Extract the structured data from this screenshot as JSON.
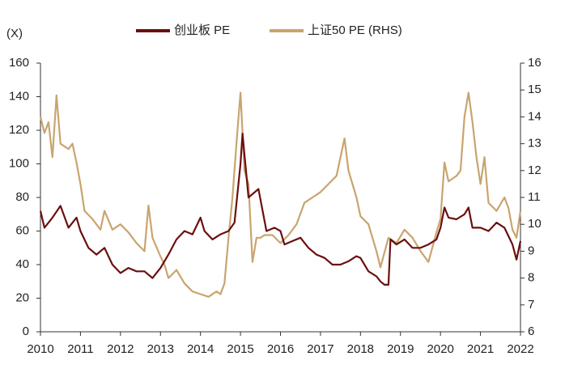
{
  "chart_data": {
    "type": "line",
    "y_unit_label": "(X)",
    "xlim": [
      2010,
      2022
    ],
    "xticks": [
      2010,
      2011,
      2012,
      2013,
      2014,
      2015,
      2016,
      2017,
      2018,
      2019,
      2020,
      2021,
      2022
    ],
    "ylim": [
      0,
      160
    ],
    "yticks": [
      0,
      20,
      40,
      60,
      80,
      100,
      120,
      140,
      160
    ],
    "y2lim": [
      6,
      16
    ],
    "y2ticks": [
      6,
      7,
      8,
      9,
      10,
      11,
      12,
      13,
      14,
      15,
      16
    ],
    "legend": "top",
    "series": [
      {
        "name": "创业板 PE",
        "color": "#6b0f0f",
        "x": [
          2010.0,
          2010.1,
          2010.3,
          2010.5,
          2010.7,
          2010.9,
          2011.0,
          2011.2,
          2011.4,
          2011.6,
          2011.8,
          2012.0,
          2012.2,
          2012.4,
          2012.6,
          2012.8,
          2013.0,
          2013.2,
          2013.4,
          2013.6,
          2013.8,
          2014.0,
          2014.1,
          2014.3,
          2014.5,
          2014.7,
          2014.85,
          2015.0,
          2015.05,
          2015.2,
          2015.45,
          2015.65,
          2015.85,
          2016.0,
          2016.1,
          2016.3,
          2016.5,
          2016.7,
          2016.9,
          2017.1,
          2017.3,
          2017.5,
          2017.7,
          2017.9,
          2018.0,
          2018.2,
          2018.4,
          2018.5,
          2018.6,
          2018.7,
          2018.75,
          2018.9,
          2019.1,
          2019.3,
          2019.5,
          2019.7,
          2019.9,
          2020.0,
          2020.1,
          2020.2,
          2020.4,
          2020.6,
          2020.7,
          2020.8,
          2021.0,
          2021.2,
          2021.4,
          2021.6,
          2021.8,
          2021.9,
          2022.0
        ],
        "values": [
          72,
          62,
          68,
          75,
          62,
          68,
          60,
          50,
          46,
          50,
          40,
          35,
          38,
          36,
          36,
          32,
          38,
          46,
          55,
          60,
          58,
          68,
          60,
          55,
          58,
          60,
          65,
          100,
          118,
          80,
          85,
          60,
          62,
          60,
          52,
          54,
          56,
          50,
          46,
          44,
          40,
          40,
          42,
          45,
          44,
          36,
          33,
          30,
          28,
          28,
          55,
          52,
          55,
          50,
          50,
          52,
          55,
          62,
          74,
          68,
          67,
          70,
          74,
          62,
          62,
          60,
          65,
          62,
          52,
          43,
          54
        ]
      },
      {
        "name": "上证50 PE (RHS)",
        "color": "#c9a46f",
        "axis": "y2",
        "x": [
          2010.0,
          2010.1,
          2010.2,
          2010.3,
          2010.4,
          2010.5,
          2010.7,
          2010.8,
          2010.9,
          2011.0,
          2011.1,
          2011.3,
          2011.5,
          2011.6,
          2011.8,
          2012.0,
          2012.2,
          2012.4,
          2012.6,
          2012.7,
          2012.8,
          2013.0,
          2013.1,
          2013.2,
          2013.4,
          2013.6,
          2013.8,
          2014.0,
          2014.2,
          2014.4,
          2014.5,
          2014.6,
          2014.7,
          2014.8,
          2014.9,
          2015.0,
          2015.1,
          2015.2,
          2015.3,
          2015.4,
          2015.5,
          2015.6,
          2015.8,
          2016.0,
          2016.2,
          2016.4,
          2016.6,
          2016.8,
          2017.0,
          2017.2,
          2017.4,
          2017.6,
          2017.7,
          2017.9,
          2018.0,
          2018.2,
          2018.4,
          2018.5,
          2018.7,
          2018.9,
          2019.1,
          2019.3,
          2019.5,
          2019.7,
          2019.9,
          2020.0,
          2020.1,
          2020.2,
          2020.4,
          2020.5,
          2020.6,
          2020.7,
          2020.8,
          2020.9,
          2021.0,
          2021.1,
          2021.2,
          2021.4,
          2021.6,
          2021.7,
          2021.8,
          2021.9,
          2022.0
        ],
        "values": [
          14.0,
          13.4,
          13.8,
          12.5,
          14.8,
          13.0,
          12.8,
          13.0,
          12.3,
          11.5,
          10.5,
          10.2,
          9.8,
          10.5,
          9.8,
          10.0,
          9.7,
          9.3,
          9.0,
          10.7,
          9.5,
          8.8,
          8.5,
          8.0,
          8.3,
          7.8,
          7.5,
          7.4,
          7.3,
          7.5,
          7.4,
          7.8,
          9.5,
          11.0,
          13.0,
          14.9,
          12.0,
          11.5,
          8.6,
          9.5,
          9.5,
          9.6,
          9.6,
          9.3,
          9.6,
          10.0,
          10.8,
          11.0,
          11.2,
          11.5,
          11.8,
          13.2,
          12.0,
          11.0,
          10.3,
          10.0,
          9.0,
          8.4,
          9.5,
          9.3,
          9.8,
          9.5,
          9.0,
          8.6,
          9.7,
          10.2,
          12.3,
          11.6,
          11.8,
          12.0,
          14.0,
          14.9,
          13.8,
          12.5,
          11.5,
          12.5,
          10.8,
          10.5,
          11.0,
          10.6,
          9.8,
          9.5,
          10.5
        ]
      }
    ]
  }
}
